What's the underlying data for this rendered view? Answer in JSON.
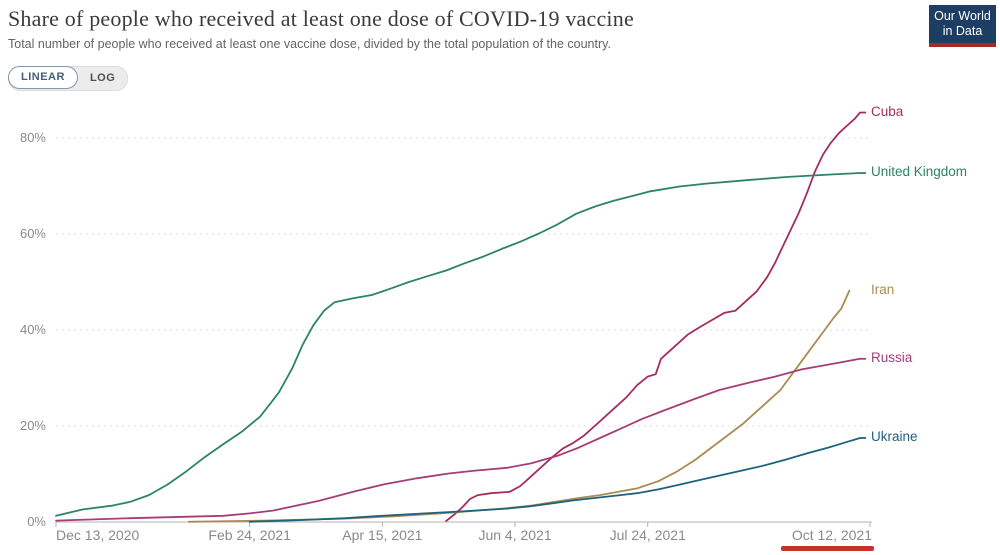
{
  "header": {
    "logo": {
      "line1": "Our World",
      "line2": "in Data",
      "bg": "#1d3d63",
      "bar_color": "#a52c21"
    }
  },
  "toolbar": {
    "linear_label": "LINEAR",
    "log_label": "LOG"
  },
  "chart_data": {
    "type": "line",
    "title": "Share of people who received at least one dose of COVID-19 vaccine",
    "subtitle": "Total number of people who received at least one vaccine dose, divided by the total population of the country.",
    "xlabel": "",
    "ylabel": "",
    "ylim": [
      0,
      88
    ],
    "grid": "dashed-horizontal",
    "legend_position": "right-of-lines",
    "x_ticks": [
      {
        "label": "Dec 13, 2020",
        "date": "2020-12-13"
      },
      {
        "label": "Feb 24, 2021",
        "date": "2021-02-24"
      },
      {
        "label": "Apr 15, 2021",
        "date": "2021-04-15"
      },
      {
        "label": "Jun 4, 2021",
        "date": "2021-06-04"
      },
      {
        "label": "Jul 24, 2021",
        "date": "2021-07-24"
      },
      {
        "label": "Oct 12, 2021",
        "date": "2021-10-12"
      }
    ],
    "y_ticks": [
      {
        "label": "0%",
        "value": 0
      },
      {
        "label": "20%",
        "value": 20
      },
      {
        "label": "40%",
        "value": 40
      },
      {
        "label": "60%",
        "value": 60
      },
      {
        "label": "80%",
        "value": 80
      }
    ],
    "series": [
      {
        "id": "cuba",
        "name": "Cuba",
        "color": "#a52c5c",
        "connector": true,
        "points": [
          [
            "2021-05-09",
            0.2
          ],
          [
            "2021-05-12",
            1.5
          ],
          [
            "2021-05-15",
            3
          ],
          [
            "2021-05-18",
            4.8
          ],
          [
            "2021-05-21",
            5.6
          ],
          [
            "2021-05-26",
            6
          ],
          [
            "2021-06-02",
            6.3
          ],
          [
            "2021-06-06",
            7.5
          ],
          [
            "2021-06-10",
            9.5
          ],
          [
            "2021-06-14",
            11.5
          ],
          [
            "2021-06-18",
            13.5
          ],
          [
            "2021-06-22",
            15.3
          ],
          [
            "2021-06-26",
            16.5
          ],
          [
            "2021-06-30",
            18
          ],
          [
            "2021-07-04",
            20
          ],
          [
            "2021-07-08",
            22
          ],
          [
            "2021-07-12",
            24
          ],
          [
            "2021-07-16",
            26
          ],
          [
            "2021-07-20",
            28.5
          ],
          [
            "2021-07-24",
            30.3
          ],
          [
            "2021-07-27",
            30.8
          ],
          [
            "2021-07-29",
            34
          ],
          [
            "2021-08-03",
            36.5
          ],
          [
            "2021-08-08",
            39
          ],
          [
            "2021-08-12",
            40.4
          ],
          [
            "2021-08-17",
            42
          ],
          [
            "2021-08-22",
            43.6
          ],
          [
            "2021-08-26",
            44
          ],
          [
            "2021-08-30",
            46
          ],
          [
            "2021-09-03",
            48
          ],
          [
            "2021-09-07",
            51
          ],
          [
            "2021-09-10",
            54
          ],
          [
            "2021-09-13",
            57.5
          ],
          [
            "2021-09-16",
            61
          ],
          [
            "2021-09-19",
            64.5
          ],
          [
            "2021-09-22",
            68.5
          ],
          [
            "2021-09-25",
            73
          ],
          [
            "2021-09-28",
            76.5
          ],
          [
            "2021-10-01",
            79
          ],
          [
            "2021-10-04",
            81
          ],
          [
            "2021-10-07",
            82.5
          ],
          [
            "2021-10-10",
            84
          ],
          [
            "2021-10-12",
            85.3
          ]
        ]
      },
      {
        "id": "united-kingdom",
        "name": "United Kingdom",
        "color": "#2c8465",
        "connector": true,
        "points": [
          [
            "2020-12-13",
            1.3
          ],
          [
            "2020-12-23",
            2.6
          ],
          [
            "2021-01-03",
            3.4
          ],
          [
            "2021-01-10",
            4.2
          ],
          [
            "2021-01-17",
            5.6
          ],
          [
            "2021-01-24",
            7.8
          ],
          [
            "2021-01-31",
            10.5
          ],
          [
            "2021-02-07",
            13.5
          ],
          [
            "2021-02-14",
            16.2
          ],
          [
            "2021-02-21",
            18.8
          ],
          [
            "2021-02-28",
            22
          ],
          [
            "2021-03-07",
            27
          ],
          [
            "2021-03-12",
            32
          ],
          [
            "2021-03-16",
            37
          ],
          [
            "2021-03-20",
            41
          ],
          [
            "2021-03-24",
            44
          ],
          [
            "2021-03-28",
            45.8
          ],
          [
            "2021-04-04",
            46.6
          ],
          [
            "2021-04-11",
            47.3
          ],
          [
            "2021-04-18",
            48.6
          ],
          [
            "2021-04-25",
            50
          ],
          [
            "2021-05-02",
            51.2
          ],
          [
            "2021-05-09",
            52.4
          ],
          [
            "2021-05-16",
            53.9
          ],
          [
            "2021-05-23",
            55.3
          ],
          [
            "2021-05-30",
            56.9
          ],
          [
            "2021-06-06",
            58.4
          ],
          [
            "2021-06-13",
            60.1
          ],
          [
            "2021-06-20",
            62
          ],
          [
            "2021-06-27",
            64.2
          ],
          [
            "2021-07-04",
            65.7
          ],
          [
            "2021-07-11",
            66.9
          ],
          [
            "2021-07-18",
            67.9
          ],
          [
            "2021-07-25",
            68.9
          ],
          [
            "2021-08-05",
            69.9
          ],
          [
            "2021-08-15",
            70.5
          ],
          [
            "2021-09-01",
            71.3
          ],
          [
            "2021-09-15",
            71.9
          ],
          [
            "2021-10-01",
            72.4
          ],
          [
            "2021-10-12",
            72.7
          ]
        ]
      },
      {
        "id": "iran",
        "name": "Iran",
        "color": "#a88c52",
        "connector": false,
        "points": [
          [
            "2021-02-01",
            0.05
          ],
          [
            "2021-03-01",
            0.3
          ],
          [
            "2021-04-01",
            0.7
          ],
          [
            "2021-04-20",
            1.2
          ],
          [
            "2021-05-10",
            1.9
          ],
          [
            "2021-05-30",
            2.8
          ],
          [
            "2021-06-10",
            3.4
          ],
          [
            "2021-06-20",
            4.3
          ],
          [
            "2021-06-28",
            5
          ],
          [
            "2021-07-06",
            5.6
          ],
          [
            "2021-07-13",
            6.3
          ],
          [
            "2021-07-20",
            7
          ],
          [
            "2021-07-28",
            8.5
          ],
          [
            "2021-08-04",
            10.5
          ],
          [
            "2021-08-11",
            13
          ],
          [
            "2021-08-17",
            15.5
          ],
          [
            "2021-08-23",
            18
          ],
          [
            "2021-08-29",
            20.5
          ],
          [
            "2021-09-03",
            23
          ],
          [
            "2021-09-08",
            25.5
          ],
          [
            "2021-09-12",
            27.5
          ],
          [
            "2021-09-16",
            30.5
          ],
          [
            "2021-09-20",
            33.5
          ],
          [
            "2021-09-24",
            36.5
          ],
          [
            "2021-09-28",
            39.5
          ],
          [
            "2021-10-02",
            42.5
          ],
          [
            "2021-10-05",
            44.5
          ],
          [
            "2021-10-08",
            48.2
          ]
        ]
      },
      {
        "id": "russia",
        "name": "Russia",
        "color": "#a63d76",
        "connector": true,
        "points": [
          [
            "2020-12-13",
            0.3
          ],
          [
            "2021-01-10",
            0.8
          ],
          [
            "2021-02-01",
            1.1
          ],
          [
            "2021-02-14",
            1.3
          ],
          [
            "2021-02-24",
            1.8
          ],
          [
            "2021-03-05",
            2.4
          ],
          [
            "2021-03-10",
            3
          ],
          [
            "2021-03-22",
            4.4
          ],
          [
            "2021-04-04",
            6.3
          ],
          [
            "2021-04-16",
            7.9
          ],
          [
            "2021-04-28",
            9.1
          ],
          [
            "2021-05-10",
            10.1
          ],
          [
            "2021-05-20",
            10.7
          ],
          [
            "2021-06-01",
            11.3
          ],
          [
            "2021-06-10",
            12.2
          ],
          [
            "2021-06-20",
            13.8
          ],
          [
            "2021-06-28",
            15.5
          ],
          [
            "2021-07-06",
            17.5
          ],
          [
            "2021-07-14",
            19.5
          ],
          [
            "2021-07-22",
            21.5
          ],
          [
            "2021-07-30",
            23.2
          ],
          [
            "2021-08-10",
            25.5
          ],
          [
            "2021-08-20",
            27.5
          ],
          [
            "2021-08-31",
            29
          ],
          [
            "2021-09-10",
            30.3
          ],
          [
            "2021-09-20",
            31.8
          ],
          [
            "2021-09-30",
            32.8
          ],
          [
            "2021-10-06",
            33.4
          ],
          [
            "2021-10-12",
            34
          ]
        ]
      },
      {
        "id": "ukraine",
        "name": "Ukraine",
        "color": "#20627e",
        "connector": true,
        "points": [
          [
            "2021-02-24",
            0.05
          ],
          [
            "2021-03-15",
            0.4
          ],
          [
            "2021-04-01",
            0.8
          ],
          [
            "2021-04-15",
            1.3
          ],
          [
            "2021-05-01",
            1.8
          ],
          [
            "2021-05-15",
            2.2
          ],
          [
            "2021-06-01",
            2.8
          ],
          [
            "2021-06-10",
            3.3
          ],
          [
            "2021-06-18",
            3.9
          ],
          [
            "2021-06-26",
            4.5
          ],
          [
            "2021-07-04",
            5
          ],
          [
            "2021-07-12",
            5.5
          ],
          [
            "2021-07-20",
            6
          ],
          [
            "2021-07-28",
            6.8
          ],
          [
            "2021-08-05",
            7.8
          ],
          [
            "2021-08-13",
            8.8
          ],
          [
            "2021-08-21",
            9.8
          ],
          [
            "2021-08-29",
            10.8
          ],
          [
            "2021-09-06",
            11.8
          ],
          [
            "2021-09-14",
            13
          ],
          [
            "2021-09-22",
            14.3
          ],
          [
            "2021-09-30",
            15.5
          ],
          [
            "2021-10-06",
            16.5
          ],
          [
            "2021-10-12",
            17.5
          ]
        ]
      }
    ],
    "annotation": {
      "type": "red-underline",
      "under_label": "Oct 12, 2021",
      "color": "#c4322a"
    }
  }
}
